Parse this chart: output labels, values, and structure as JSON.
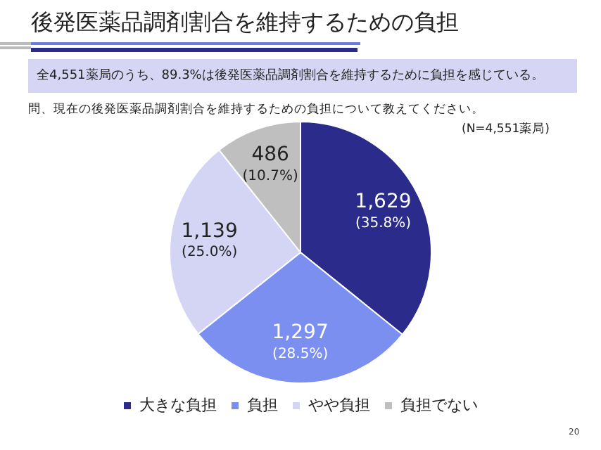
{
  "chart_data": {
    "type": "pie",
    "title": "後発医薬品調剤割合を維持するための負担",
    "subtitle": "全4,551薬局のうち、89.3%は後発医薬品調剤割合を維持するために負担を感じている。",
    "annotations": [
      "問、現在の後発医薬品調剤割合を維持するための負担について教えてください。",
      "(N=4,551薬局)",
      "20"
    ],
    "categories": [
      "大きな負担",
      "負担",
      "やや負担",
      "負担でない"
    ],
    "values": [
      1629,
      1297,
      1139,
      486
    ],
    "value_labels": [
      "1,629\n(35.8%)",
      "1,297\n(28.5%)",
      "1,139\n(25.0%)",
      "486\n(10.7%)"
    ],
    "colors": [
      "#2b2b8c",
      "#7b8ff0",
      "#d4d4f4",
      "#bfbfbf"
    ],
    "legend": "bottom"
  }
}
